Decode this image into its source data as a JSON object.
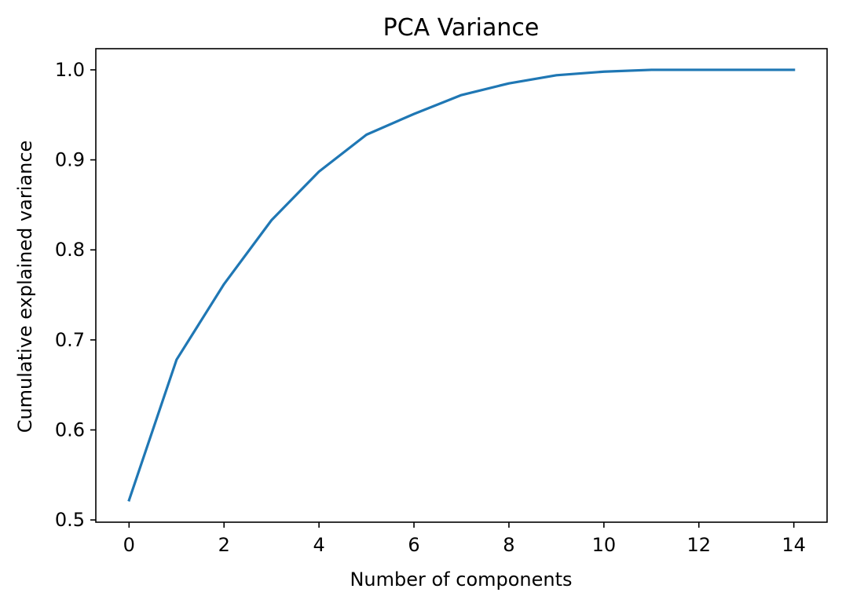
{
  "chart_data": {
    "type": "line",
    "title": "PCA Variance",
    "xlabel": "Number of components",
    "ylabel": "Cumulative explained variance",
    "xlim": [
      -0.7,
      14.7
    ],
    "ylim": [
      0.4975,
      1.0235
    ],
    "x_ticks": [
      0,
      2,
      4,
      6,
      8,
      10,
      12,
      14
    ],
    "y_ticks": [
      0.5,
      0.6,
      0.7,
      0.8,
      0.9,
      1.0
    ],
    "x_tick_labels": [
      "0",
      "2",
      "4",
      "6",
      "8",
      "10",
      "12",
      "14"
    ],
    "y_tick_labels": [
      "0.5",
      "0.6",
      "0.7",
      "0.8",
      "0.9",
      "1.0"
    ],
    "grid": false,
    "series": [
      {
        "color": "#1f77b4",
        "x": [
          0,
          1,
          2,
          3,
          4,
          5,
          6,
          7,
          8,
          9,
          10,
          11,
          12,
          13,
          14
        ],
        "y": [
          0.522,
          0.678,
          0.762,
          0.833,
          0.887,
          0.928,
          0.951,
          0.972,
          0.985,
          0.994,
          0.998,
          1.0,
          1.0,
          1.0,
          1.0
        ]
      }
    ]
  }
}
